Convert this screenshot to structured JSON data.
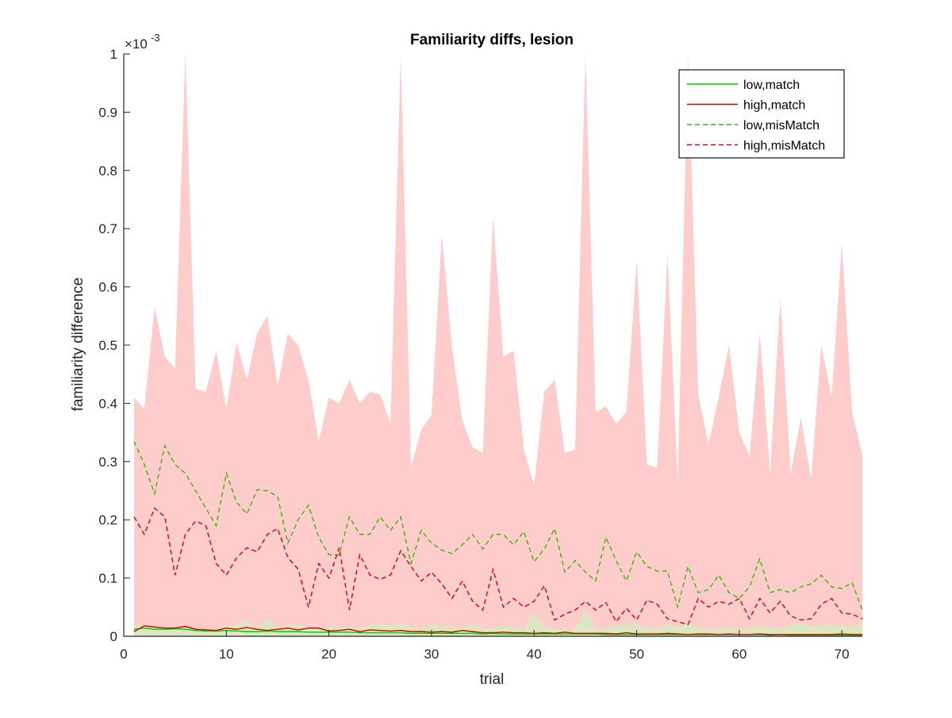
{
  "colors": {
    "low_match": "#00cc00",
    "high_match": "#cc0000",
    "low_mismatch": "#33bb00",
    "high_mismatch": "#e60000",
    "high_band": "#ffcccc",
    "low_band": "#d9e8c0",
    "axis": "#262626"
  },
  "chart_data": {
    "type": "line",
    "title": "Familiarity diffs, lesion",
    "xlabel": "trial",
    "ylabel": "familiarity difference",
    "y_exponent_label": "×10",
    "y_exponent_power": "-3",
    "xlim": [
      0,
      72
    ],
    "ylim": [
      0,
      1
    ],
    "y_scale_factor": "1e-3",
    "xticks": [
      0,
      10,
      20,
      30,
      40,
      50,
      60,
      70
    ],
    "yticks": [
      0,
      0.1,
      0.2,
      0.3,
      0.4,
      0.5,
      0.6,
      0.7,
      0.8,
      0.9,
      1
    ],
    "ytick_labels": [
      "0",
      "0.1",
      "0.2",
      "0.3",
      "0.4",
      "0.5",
      "0.6",
      "0.7",
      "0.8",
      "0.9",
      "1"
    ],
    "grid": false,
    "legend_position": "top-right",
    "x": [
      1,
      2,
      3,
      4,
      5,
      6,
      7,
      8,
      9,
      10,
      11,
      12,
      13,
      14,
      15,
      16,
      17,
      18,
      19,
      20,
      21,
      22,
      23,
      24,
      25,
      26,
      27,
      28,
      29,
      30,
      31,
      32,
      33,
      34,
      35,
      36,
      37,
      38,
      39,
      40,
      41,
      42,
      43,
      44,
      45,
      46,
      47,
      48,
      49,
      50,
      51,
      52,
      53,
      54,
      55,
      56,
      57,
      58,
      59,
      60,
      61,
      62,
      63,
      64,
      65,
      66,
      67,
      68,
      69,
      70,
      71,
      72
    ],
    "bands": [
      {
        "name": "high band",
        "color_key": "high_band",
        "upper": [
          0.41,
          0.39,
          0.565,
          0.48,
          0.46,
          1.0,
          0.425,
          0.42,
          0.49,
          0.39,
          0.505,
          0.44,
          0.52,
          0.55,
          0.43,
          0.52,
          0.5,
          0.44,
          0.335,
          0.41,
          0.4,
          0.44,
          0.4,
          0.42,
          0.415,
          0.365,
          1.0,
          0.29,
          0.355,
          0.38,
          0.69,
          0.495,
          0.37,
          0.325,
          0.315,
          0.72,
          0.48,
          0.49,
          0.32,
          0.26,
          0.42,
          0.44,
          0.315,
          0.32,
          1.0,
          0.385,
          0.395,
          0.365,
          0.385,
          0.645,
          0.295,
          0.29,
          0.655,
          0.265,
          1.0,
          0.415,
          0.33,
          0.41,
          0.5,
          0.35,
          0.31,
          0.52,
          0.28,
          0.58,
          0.28,
          0.375,
          0.27,
          0.5,
          0.41,
          0.675,
          0.385,
          0.31
        ],
        "lower": [
          0.005,
          0.006,
          0.005,
          0.004,
          0.004,
          0.004,
          0.004,
          0.004,
          0.003,
          0.004,
          0.003,
          0.003,
          0.003,
          0.003,
          0.003,
          0.003,
          0.003,
          0.003,
          0.003,
          0.003,
          0.003,
          0.003,
          0.003,
          0.003,
          0.003,
          0.003,
          0.003,
          0.003,
          0.003,
          0.003,
          0.003,
          0.003,
          0.003,
          0.003,
          0.003,
          0.003,
          0.003,
          0.003,
          0.003,
          0.003,
          0.003,
          0.003,
          0.003,
          0.003,
          0.003,
          0.003,
          0.003,
          0.003,
          0.003,
          0.003,
          0.003,
          0.003,
          0.003,
          0.003,
          0.003,
          0.003,
          0.003,
          0.003,
          0.003,
          0.003,
          0.003,
          0.003,
          0.003,
          0.003,
          0.003,
          0.003,
          0.003,
          0.003,
          0.003,
          0.003,
          0.003,
          0.003
        ]
      },
      {
        "name": "low band",
        "color_key": "low_band",
        "upper": [
          0.02,
          0.018,
          0.016,
          0.015,
          0.016,
          0.012,
          0.01,
          0.012,
          0.011,
          0.018,
          0.02,
          0.028,
          0.012,
          0.032,
          0.015,
          0.018,
          0.02,
          0.014,
          0.012,
          0.016,
          0.014,
          0.016,
          0.012,
          0.02,
          0.022,
          0.016,
          0.025,
          0.014,
          0.016,
          0.02,
          0.018,
          0.016,
          0.014,
          0.02,
          0.012,
          0.014,
          0.018,
          0.016,
          0.012,
          0.04,
          0.015,
          0.014,
          0.01,
          0.012,
          0.045,
          0.012,
          0.015,
          0.018,
          0.02,
          0.02,
          0.015,
          0.014,
          0.02,
          0.016,
          0.02,
          0.014,
          0.012,
          0.014,
          0.016,
          0.012,
          0.014,
          0.016,
          0.015,
          0.012,
          0.02,
          0.022,
          0.016,
          0.018,
          0.02,
          0.018,
          0.016,
          0.02
        ],
        "lower": [
          0.0,
          0.0,
          0.0,
          0.0,
          0.0,
          0.0,
          0.0,
          0.0,
          0.0,
          0.0,
          0.0,
          0.0,
          0.0,
          0.0,
          0.0,
          0.0,
          0.0,
          0.0,
          0.0,
          0.0,
          0.0,
          0.0,
          0.0,
          0.0,
          0.0,
          0.0,
          0.0,
          0.0,
          0.0,
          0.0,
          0.0,
          0.0,
          0.0,
          0.0,
          0.0,
          0.0,
          0.0,
          0.0,
          0.0,
          0.0,
          0.0,
          0.0,
          0.0,
          0.0,
          0.0,
          0.0,
          0.0,
          0.0,
          0.0,
          0.0,
          0.0,
          0.0,
          0.0,
          0.0,
          0.0,
          0.0,
          0.0,
          0.0,
          0.0,
          0.0,
          0.0,
          0.0,
          0.0,
          0.0,
          0.0,
          0.0,
          0.0,
          0.0,
          0.0,
          0.0,
          0.0,
          0.0
        ]
      }
    ],
    "series": [
      {
        "name": "low,match",
        "color_key": "low_match",
        "dash": "solid",
        "values": [
          0.012,
          0.014,
          0.012,
          0.012,
          0.013,
          0.012,
          0.01,
          0.009,
          0.009,
          0.01,
          0.009,
          0.008,
          0.008,
          0.009,
          0.008,
          0.008,
          0.008,
          0.007,
          0.007,
          0.007,
          0.007,
          0.007,
          0.006,
          0.006,
          0.006,
          0.006,
          0.006,
          0.005,
          0.005,
          0.005,
          0.005,
          0.005,
          0.005,
          0.005,
          0.004,
          0.005,
          0.004,
          0.004,
          0.004,
          0.004,
          0.004,
          0.004,
          0.004,
          0.004,
          0.004,
          0.004,
          0.003,
          0.003,
          0.003,
          0.003,
          0.003,
          0.003,
          0.003,
          0.003,
          0.003,
          0.003,
          0.003,
          0.003,
          0.003,
          0.003,
          0.003,
          0.003,
          0.002,
          0.003,
          0.002,
          0.002,
          0.002,
          0.002,
          0.002,
          0.002,
          0.002,
          0.002
        ]
      },
      {
        "name": "high,match",
        "color_key": "high_match",
        "dash": "solid",
        "values": [
          0.008,
          0.018,
          0.016,
          0.014,
          0.014,
          0.017,
          0.012,
          0.011,
          0.01,
          0.014,
          0.012,
          0.015,
          0.012,
          0.01,
          0.012,
          0.014,
          0.011,
          0.014,
          0.014,
          0.009,
          0.01,
          0.012,
          0.008,
          0.011,
          0.01,
          0.009,
          0.01,
          0.008,
          0.008,
          0.007,
          0.008,
          0.007,
          0.01,
          0.008,
          0.006,
          0.006,
          0.007,
          0.006,
          0.006,
          0.005,
          0.006,
          0.005,
          0.007,
          0.005,
          0.005,
          0.005,
          0.005,
          0.004,
          0.006,
          0.004,
          0.004,
          0.004,
          0.005,
          0.004,
          0.003,
          0.004,
          0.004,
          0.003,
          0.004,
          0.003,
          0.003,
          0.004,
          0.003,
          0.003,
          0.003,
          0.003,
          0.003,
          0.003,
          0.003,
          0.004,
          0.003,
          0.003
        ]
      },
      {
        "name": "low,misMatch",
        "color_key": "low_mismatch",
        "dash": "dashed",
        "values": [
          0.335,
          0.295,
          0.245,
          0.327,
          0.295,
          0.28,
          0.25,
          0.22,
          0.19,
          0.28,
          0.23,
          0.21,
          0.252,
          0.25,
          0.24,
          0.16,
          0.2,
          0.225,
          0.17,
          0.14,
          0.14,
          0.205,
          0.175,
          0.175,
          0.205,
          0.182,
          0.205,
          0.125,
          0.182,
          0.16,
          0.148,
          0.142,
          0.157,
          0.175,
          0.15,
          0.175,
          0.175,
          0.157,
          0.18,
          0.128,
          0.15,
          0.185,
          0.11,
          0.13,
          0.11,
          0.095,
          0.17,
          0.13,
          0.095,
          0.145,
          0.12,
          0.112,
          0.112,
          0.05,
          0.12,
          0.075,
          0.08,
          0.105,
          0.075,
          0.065,
          0.085,
          0.133,
          0.075,
          0.08,
          0.075,
          0.085,
          0.09,
          0.105,
          0.085,
          0.082,
          0.092,
          0.045
        ]
      },
      {
        "name": "high,misMatch",
        "color_key": "high_mismatch",
        "dash": "dashed",
        "values": [
          0.205,
          0.175,
          0.22,
          0.205,
          0.105,
          0.175,
          0.198,
          0.19,
          0.125,
          0.105,
          0.135,
          0.152,
          0.145,
          0.175,
          0.185,
          0.135,
          0.115,
          0.05,
          0.125,
          0.1,
          0.152,
          0.045,
          0.14,
          0.105,
          0.098,
          0.105,
          0.147,
          0.12,
          0.095,
          0.11,
          0.09,
          0.065,
          0.095,
          0.06,
          0.045,
          0.115,
          0.05,
          0.065,
          0.05,
          0.06,
          0.087,
          0.028,
          0.038,
          0.045,
          0.06,
          0.045,
          0.058,
          0.025,
          0.048,
          0.028,
          0.062,
          0.055,
          0.03,
          0.025,
          0.02,
          0.065,
          0.05,
          0.06,
          0.055,
          0.065,
          0.03,
          0.065,
          0.04,
          0.06,
          0.035,
          0.028,
          0.03,
          0.055,
          0.065,
          0.04,
          0.038,
          0.03
        ]
      }
    ]
  }
}
